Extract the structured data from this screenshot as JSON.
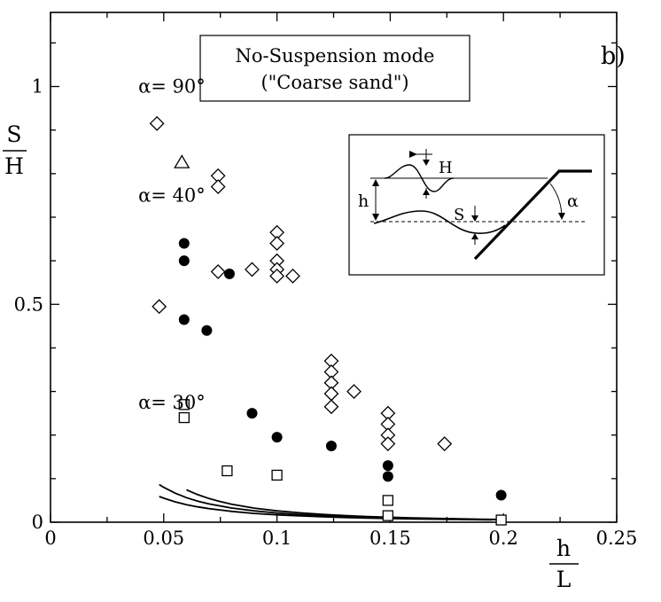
{
  "panel_label": "b)",
  "chart_data": {
    "type": "scatter",
    "title": "No-Suspension mode",
    "subtitle": "(\"Coarse sand\")",
    "xlabel": "h / L",
    "xlabel_num": "h",
    "xlabel_den": "L",
    "ylabel": "S / H",
    "ylabel_num": "S",
    "ylabel_den": "H",
    "xlim": [
      0,
      0.25
    ],
    "ylim": [
      0,
      1.17
    ],
    "xticks": [
      {
        "value": 0,
        "label": "0"
      },
      {
        "value": 0.05,
        "label": "0.05"
      },
      {
        "value": 0.1,
        "label": "0.1"
      },
      {
        "value": 0.15,
        "label": "0.15"
      },
      {
        "value": 0.2,
        "label": "0.2"
      },
      {
        "value": 0.25,
        "label": "0.25"
      }
    ],
    "yticks": [
      {
        "value": 0,
        "label": "0"
      },
      {
        "value": 0.5,
        "label": "0.5"
      },
      {
        "value": 1,
        "label": "1"
      }
    ],
    "grid": false,
    "curves": [
      {
        "label": "α= 90°",
        "label_x": 0.02,
        "label_y": 1.0,
        "a": 0.000233,
        "p": 2.05,
        "x": [
          0.06,
          0.065,
          0.07,
          0.075,
          0.08,
          0.09,
          0.1,
          0.11,
          0.12,
          0.13,
          0.14,
          0.15,
          0.16,
          0.17,
          0.18,
          0.19,
          0.2
        ]
      },
      {
        "label": "α= 40°",
        "label_x": 0.02,
        "label_y": 0.75,
        "a": 0.000258,
        "p": 1.915,
        "x": [
          0.048,
          0.05,
          0.055,
          0.06,
          0.065,
          0.07,
          0.08,
          0.09,
          0.1,
          0.11,
          0.12,
          0.13,
          0.14,
          0.15,
          0.16,
          0.17,
          0.18,
          0.19,
          0.2
        ]
      },
      {
        "label": "α= 30°",
        "label_x": 0.02,
        "label_y": 0.275,
        "a": 0.000336,
        "p": 1.702,
        "x": [
          0.048,
          0.05,
          0.055,
          0.06,
          0.065,
          0.07,
          0.08,
          0.09,
          0.1,
          0.11,
          0.12,
          0.13,
          0.14,
          0.15,
          0.16,
          0.17,
          0.18,
          0.19,
          0.195
        ]
      }
    ],
    "series": [
      {
        "marker": "diamond",
        "points": [
          [
            0.047,
            0.915
          ],
          [
            0.048,
            0.495
          ],
          [
            0.074,
            0.795
          ],
          [
            0.074,
            0.77
          ],
          [
            0.074,
            0.575
          ],
          [
            0.089,
            0.58
          ],
          [
            0.1,
            0.665
          ],
          [
            0.1,
            0.64
          ],
          [
            0.1,
            0.6
          ],
          [
            0.1,
            0.58
          ],
          [
            0.1,
            0.565
          ],
          [
            0.107,
            0.565
          ],
          [
            0.124,
            0.37
          ],
          [
            0.124,
            0.345
          ],
          [
            0.124,
            0.32
          ],
          [
            0.124,
            0.295
          ],
          [
            0.124,
            0.265
          ],
          [
            0.134,
            0.3
          ],
          [
            0.149,
            0.25
          ],
          [
            0.149,
            0.225
          ],
          [
            0.149,
            0.2
          ],
          [
            0.149,
            0.18
          ],
          [
            0.174,
            0.18
          ]
        ]
      },
      {
        "marker": "triangle",
        "points": [
          [
            0.058,
            0.825
          ]
        ]
      },
      {
        "marker": "filled-circle",
        "points": [
          [
            0.059,
            0.64
          ],
          [
            0.059,
            0.6
          ],
          [
            0.059,
            0.465
          ],
          [
            0.069,
            0.44
          ],
          [
            0.079,
            0.57
          ],
          [
            0.089,
            0.25
          ],
          [
            0.1,
            0.195
          ],
          [
            0.124,
            0.175
          ],
          [
            0.149,
            0.13
          ],
          [
            0.149,
            0.105
          ],
          [
            0.199,
            0.062
          ]
        ]
      },
      {
        "marker": "square",
        "points": [
          [
            0.059,
            0.27
          ],
          [
            0.059,
            0.24
          ],
          [
            0.078,
            0.118
          ],
          [
            0.1,
            0.108
          ],
          [
            0.149,
            0.05
          ],
          [
            0.149,
            0.015
          ],
          [
            0.199,
            0.005
          ]
        ]
      }
    ]
  },
  "inset": {
    "label_H": "H",
    "label_h": "h",
    "label_S": "S",
    "label_alpha": "α"
  }
}
